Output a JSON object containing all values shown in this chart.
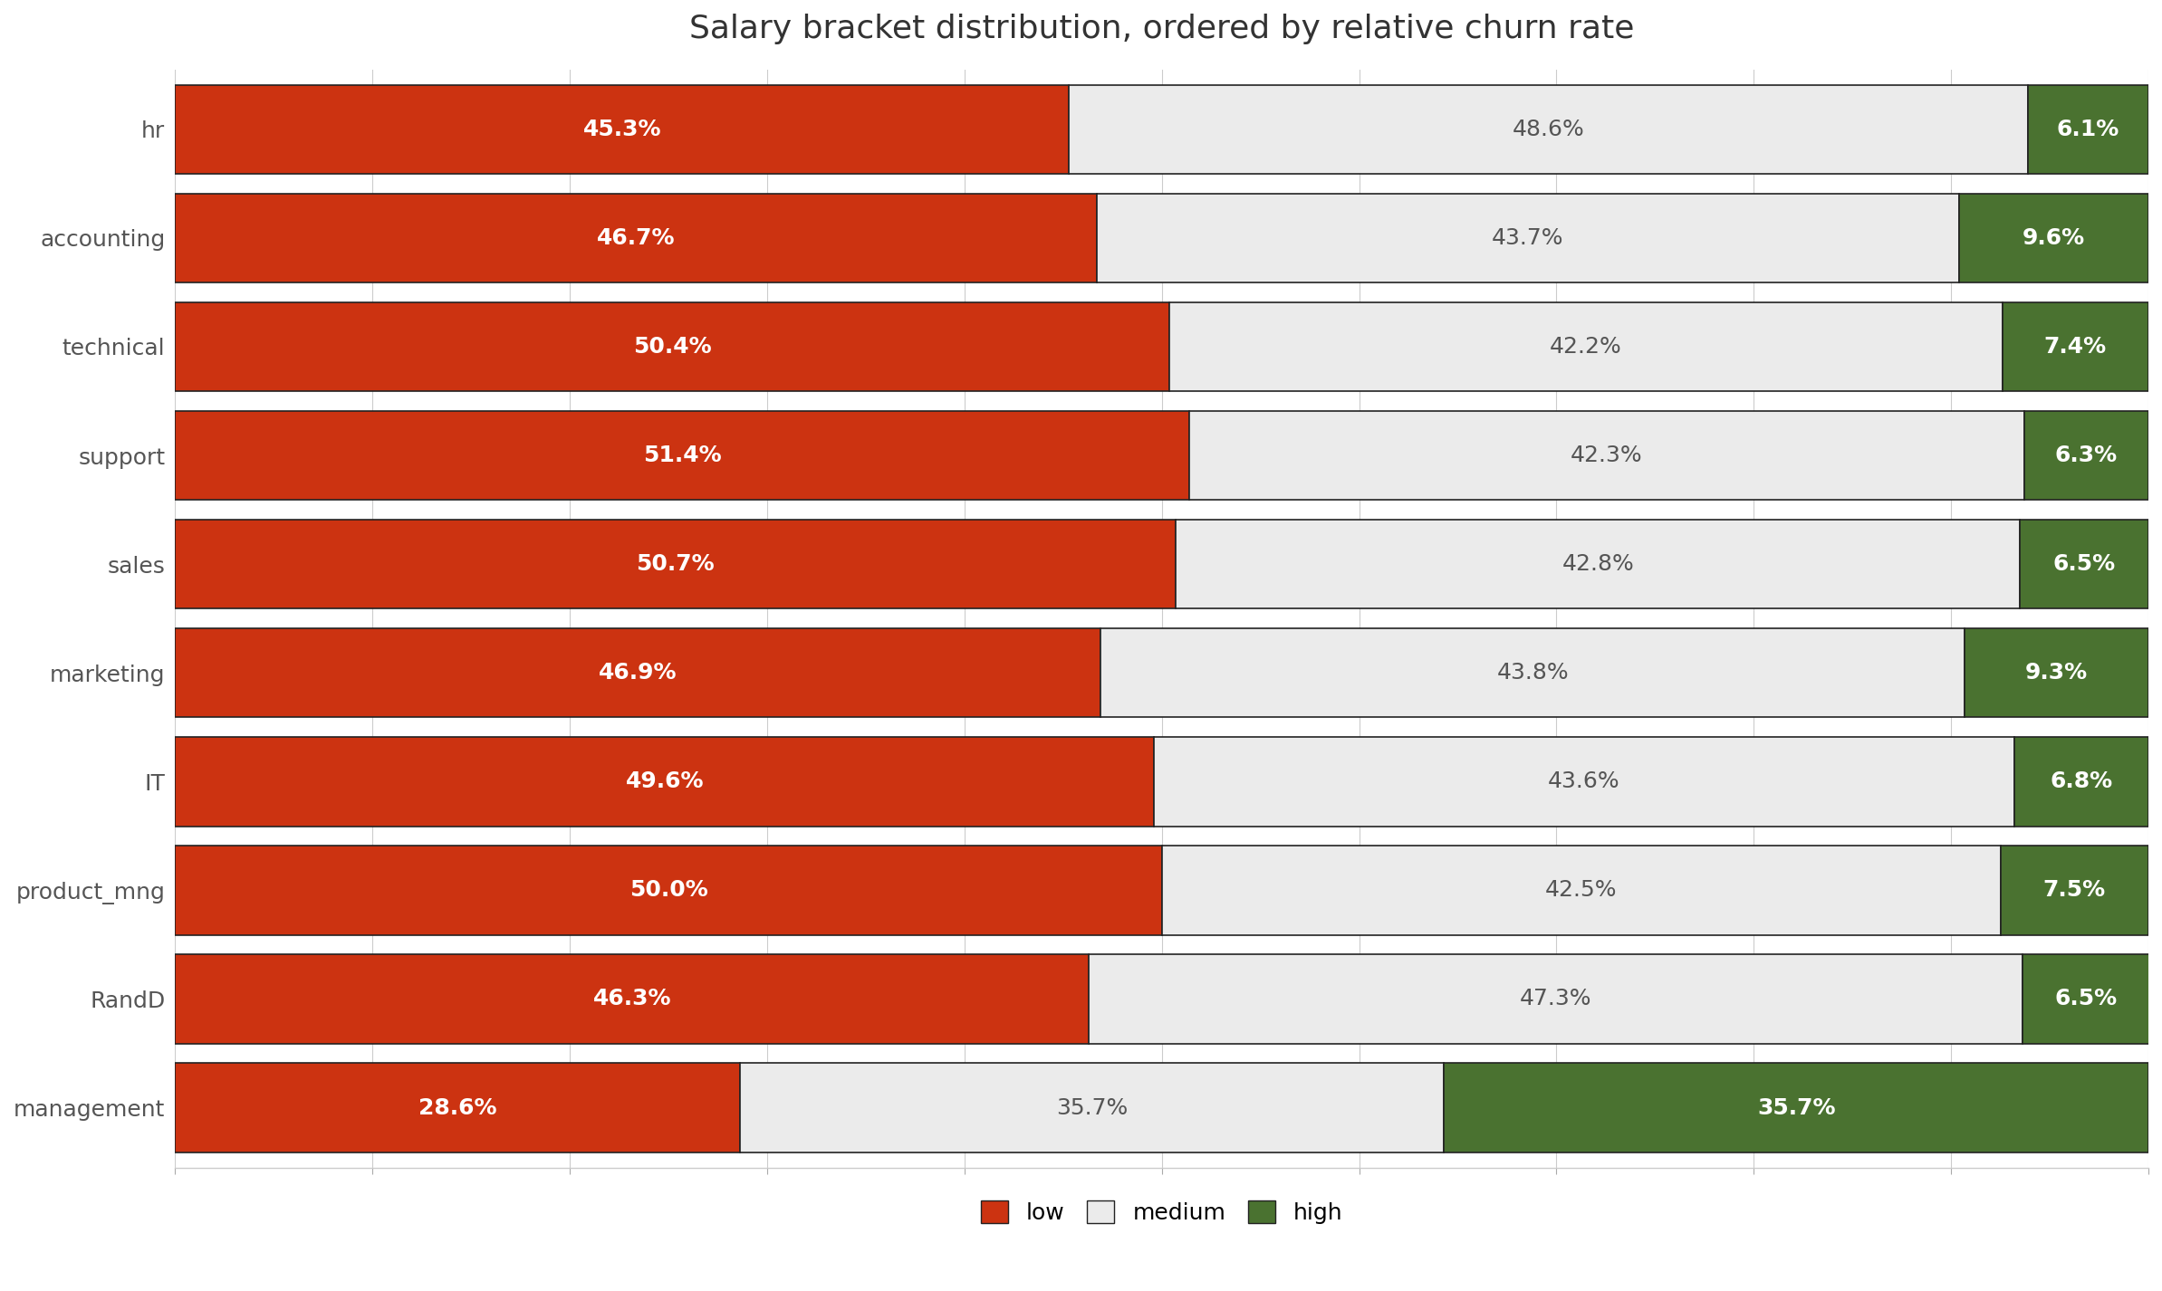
{
  "title": "Salary bracket distribution, ordered by relative churn rate",
  "departments": [
    "hr",
    "accounting",
    "technical",
    "support",
    "sales",
    "marketing",
    "IT",
    "product_mng",
    "RandD",
    "management"
  ],
  "low": [
    45.3,
    46.7,
    50.4,
    51.4,
    50.7,
    46.9,
    49.6,
    50.0,
    46.3,
    28.6
  ],
  "medium": [
    48.6,
    43.7,
    42.2,
    42.3,
    42.8,
    43.8,
    43.6,
    42.5,
    47.3,
    35.7
  ],
  "high": [
    6.1,
    9.6,
    7.4,
    6.3,
    6.5,
    9.3,
    6.8,
    7.5,
    6.5,
    35.7
  ],
  "color_low": "#cc3311",
  "color_medium": "#ebebeb",
  "color_high": "#4a7230",
  "color_border": "#222222",
  "background_color": "#ffffff",
  "title_fontsize": 26,
  "label_fontsize": 18,
  "tick_fontsize": 18,
  "legend_fontsize": 18,
  "bar_height": 0.82
}
